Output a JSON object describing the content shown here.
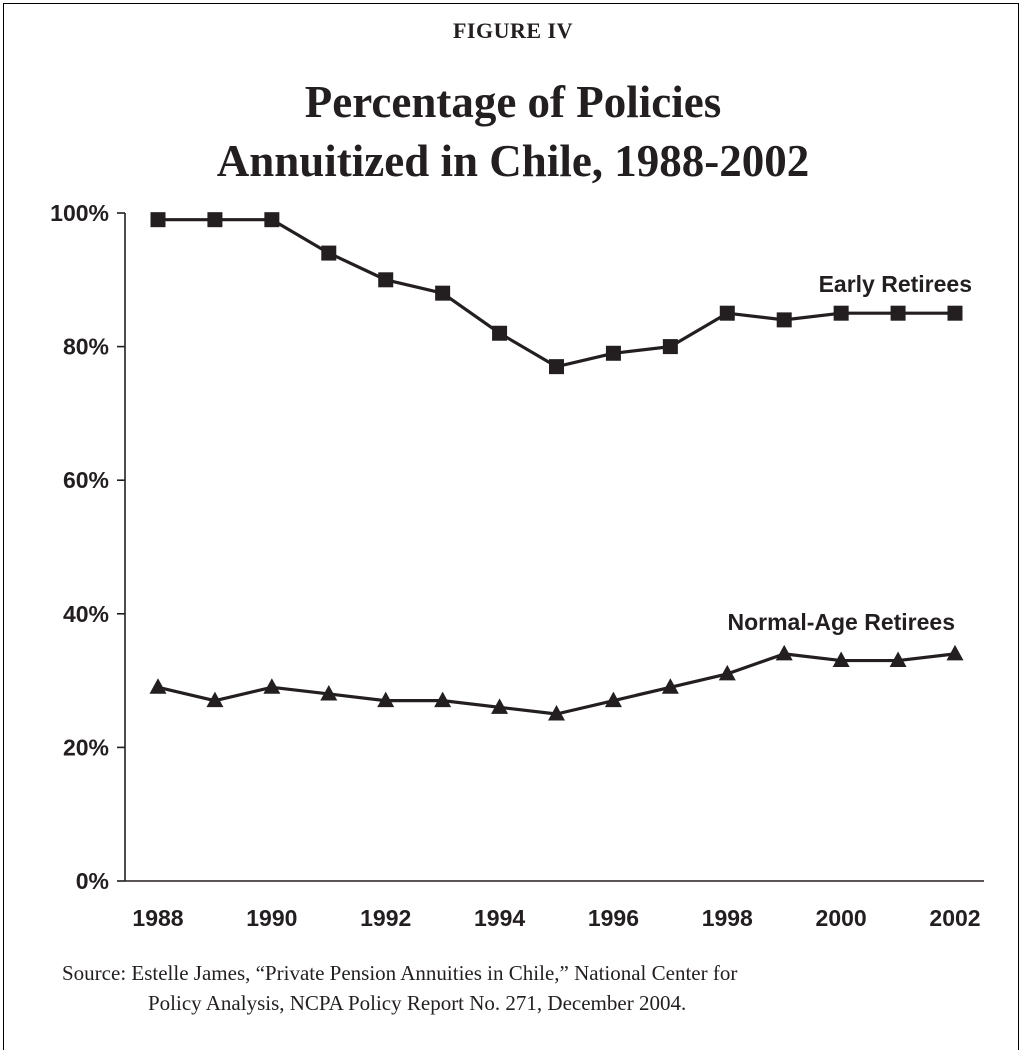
{
  "figure_label": "FIGURE  IV",
  "title_line1": "Percentage of Policies",
  "title_line2": "Annuitized in Chile, 1988-2002",
  "source_line1": "Source: Estelle James, “Private Pension Annuities in Chile,” National Center for",
  "source_line2": "Policy Analysis, NCPA Policy Report No. 271, December 2004.",
  "colors": {
    "ink": "#231f20",
    "background": "#ffffff"
  },
  "chart_data": {
    "type": "line",
    "x": [
      1988,
      1989,
      1990,
      1991,
      1992,
      1993,
      1994,
      1995,
      1996,
      1997,
      1998,
      1999,
      2000,
      2001,
      2002
    ],
    "x_tick_labels": [
      "1988",
      "1990",
      "1992",
      "1994",
      "1996",
      "1998",
      "2000",
      "2002"
    ],
    "y_tick_labels": [
      "0%",
      "20%",
      "40%",
      "60%",
      "80%",
      "100%"
    ],
    "ylim": [
      0,
      100
    ],
    "grid": false,
    "legend": "none (series labelled directly on chart)",
    "series": [
      {
        "name": "Early Retirees",
        "marker": "square",
        "values": [
          99,
          99,
          99,
          94,
          90,
          88,
          82,
          77,
          79,
          80,
          85,
          84,
          85,
          85,
          85
        ]
      },
      {
        "name": "Normal-Age Retirees",
        "marker": "triangle",
        "values": [
          29,
          27,
          29,
          28,
          27,
          27,
          26,
          25,
          27,
          29,
          31,
          34,
          33,
          33,
          34
        ]
      }
    ]
  }
}
